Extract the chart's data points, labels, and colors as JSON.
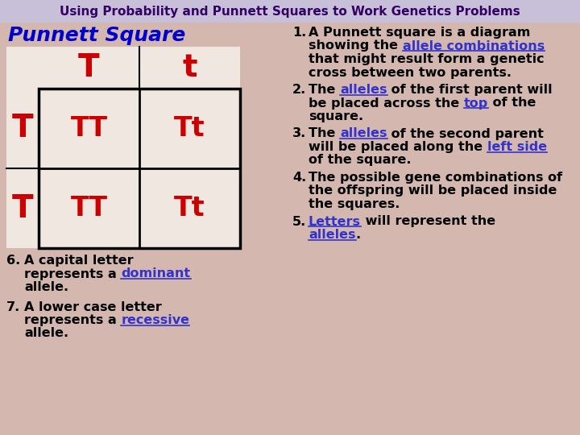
{
  "title": "Using Probability and Punnett Squares to Work Genetics Problems",
  "title_bg": "#c8c0d8",
  "title_color": "#330066",
  "bg_color": "#d4b8b0",
  "punnett_label": "Punnett Square",
  "punnett_label_color": "#0000cc",
  "top_alleles": [
    "T",
    "t"
  ],
  "left_alleles": [
    "T",
    "T"
  ],
  "cell_contents": [
    [
      "TT",
      "Tt"
    ],
    [
      "TT",
      "Tt"
    ]
  ],
  "cell_color": "#f0e8e0",
  "allele_color": "#cc0000",
  "text_color": "#000000",
  "link_color": "#3333cc",
  "points_right": [
    {
      "num": "1.",
      "lines": [
        [
          {
            "t": "A Punnett square is a diagram",
            "c": "#000000",
            "u": false
          }
        ],
        [
          {
            "t": "showing the ",
            "c": "#000000",
            "u": false
          },
          {
            "t": "allele combinations",
            "c": "#3333cc",
            "u": true
          }
        ],
        [
          {
            "t": "that might result form a genetic",
            "c": "#000000",
            "u": false
          }
        ],
        [
          {
            "t": "cross between two parents.",
            "c": "#000000",
            "u": false
          }
        ]
      ]
    },
    {
      "num": "2.",
      "lines": [
        [
          {
            "t": "The ",
            "c": "#000000",
            "u": false
          },
          {
            "t": "alleles",
            "c": "#3333cc",
            "u": true
          },
          {
            "t": " of the first parent will",
            "c": "#000000",
            "u": false
          }
        ],
        [
          {
            "t": "be placed across the ",
            "c": "#000000",
            "u": false
          },
          {
            "t": "top",
            "c": "#3333cc",
            "u": true
          },
          {
            "t": " of the",
            "c": "#000000",
            "u": false
          }
        ],
        [
          {
            "t": "square.",
            "c": "#000000",
            "u": false
          }
        ]
      ]
    },
    {
      "num": "3.",
      "lines": [
        [
          {
            "t": "The ",
            "c": "#000000",
            "u": false
          },
          {
            "t": "alleles",
            "c": "#3333cc",
            "u": true
          },
          {
            "t": " of the second parent",
            "c": "#000000",
            "u": false
          }
        ],
        [
          {
            "t": "will be placed along the ",
            "c": "#000000",
            "u": false
          },
          {
            "t": "left side",
            "c": "#3333cc",
            "u": true
          }
        ],
        [
          {
            "t": "of the square.",
            "c": "#000000",
            "u": false
          }
        ]
      ]
    },
    {
      "num": "4.",
      "lines": [
        [
          {
            "t": "The possible gene combinations of",
            "c": "#000000",
            "u": false
          }
        ],
        [
          {
            "t": "the offspring will be placed inside",
            "c": "#000000",
            "u": false
          }
        ],
        [
          {
            "t": "the squares.",
            "c": "#000000",
            "u": false
          }
        ]
      ]
    },
    {
      "num": "5.",
      "lines": [
        [
          {
            "t": "Letters",
            "c": "#3333cc",
            "u": true
          },
          {
            "t": " will represent the",
            "c": "#000000",
            "u": false
          }
        ],
        [
          {
            "t": "alleles",
            "c": "#3333cc",
            "u": true
          },
          {
            "t": ".",
            "c": "#000000",
            "u": false
          }
        ]
      ]
    }
  ],
  "points_left": [
    {
      "num": "6.",
      "lines": [
        [
          {
            "t": "A capital letter",
            "c": "#000000",
            "u": false
          }
        ],
        [
          {
            "t": "represents a ",
            "c": "#000000",
            "u": false
          },
          {
            "t": "dominant",
            "c": "#3333cc",
            "u": true
          }
        ],
        [
          {
            "t": "allele.",
            "c": "#000000",
            "u": false
          }
        ]
      ]
    },
    {
      "num": "7.",
      "lines": [
        [
          {
            "t": "A lower case letter",
            "c": "#000000",
            "u": false
          }
        ],
        [
          {
            "t": "represents a ",
            "c": "#000000",
            "u": false
          },
          {
            "t": "recessive",
            "c": "#3333cc",
            "u": true
          }
        ],
        [
          {
            "t": "allele.",
            "c": "#000000",
            "u": false
          }
        ]
      ]
    }
  ]
}
